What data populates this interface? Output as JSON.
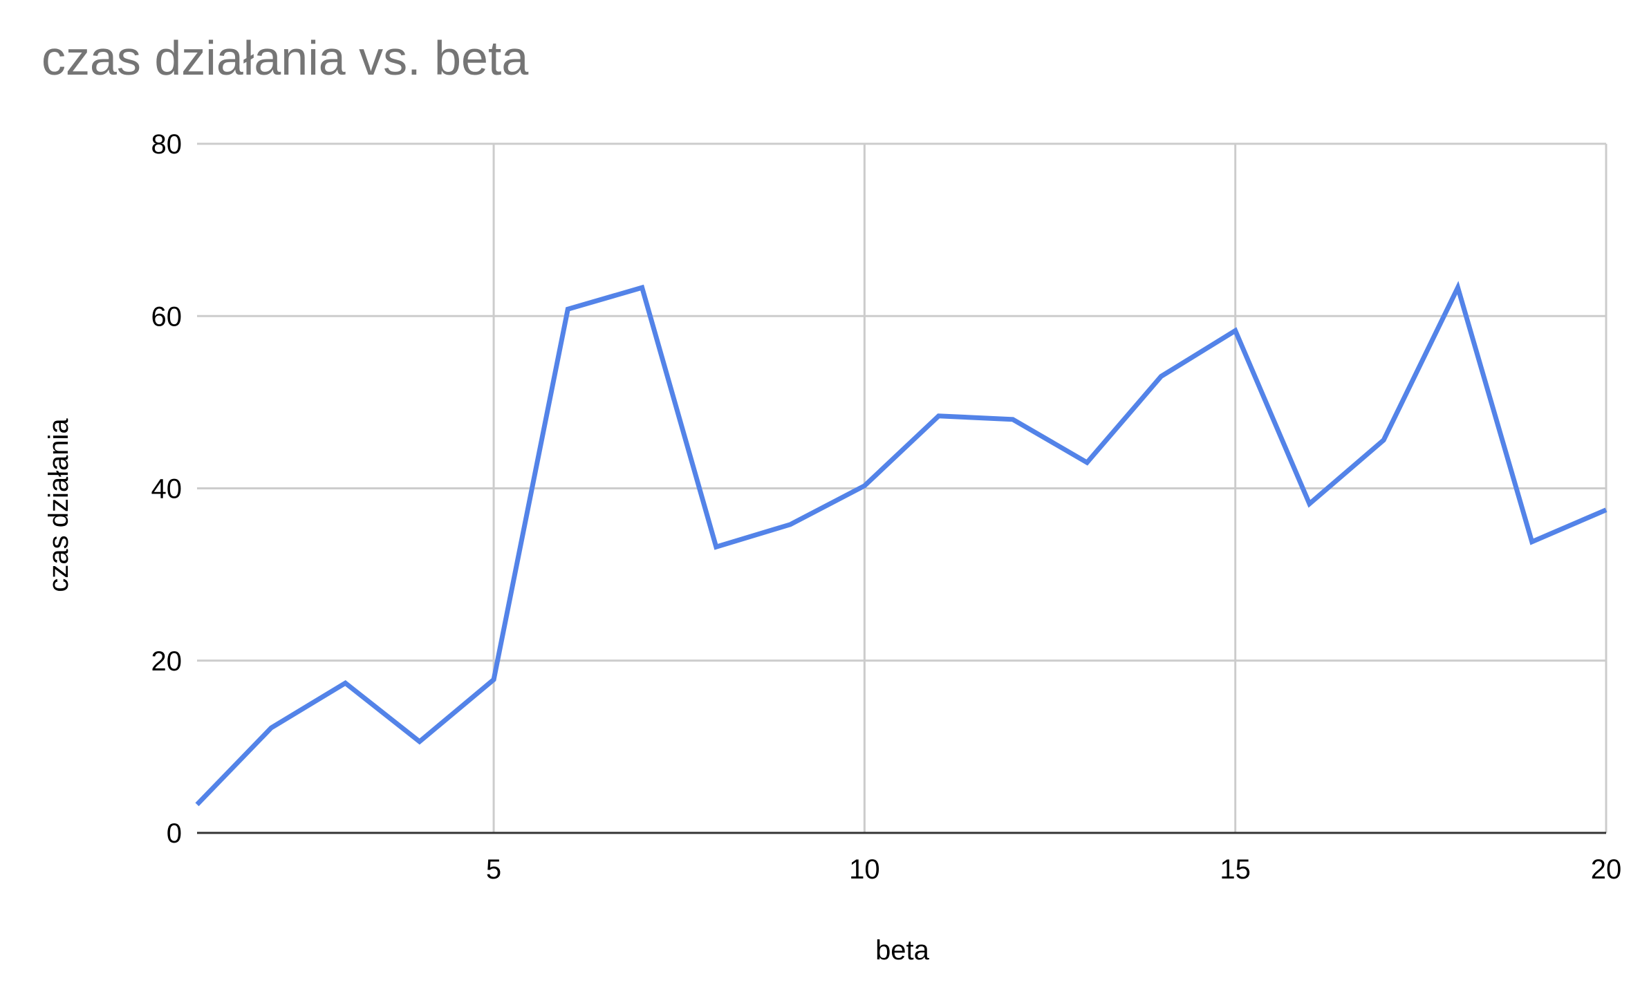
{
  "chart_data": {
    "type": "line",
    "title": "czas działania vs. beta",
    "xlabel": "beta",
    "ylabel": "czas działania",
    "xlim": [
      1,
      20
    ],
    "ylim": [
      0,
      80
    ],
    "x_ticks": [
      5,
      10,
      15,
      20
    ],
    "y_ticks": [
      0,
      20,
      40,
      60,
      80
    ],
    "grid": true,
    "legend": "none",
    "series": [
      {
        "color": "#5383E8",
        "x": [
          1,
          2,
          3,
          4,
          5,
          6,
          7,
          8,
          9,
          10,
          11,
          12,
          13,
          14,
          15,
          16,
          17,
          18,
          19,
          20
        ],
        "y": [
          3.3,
          12.2,
          17.4,
          10.6,
          17.8,
          60.8,
          63.3,
          33.2,
          35.8,
          40.3,
          48.4,
          48.0,
          43.0,
          53.0,
          58.3,
          38.2,
          45.6,
          63.3,
          33.8,
          37.5
        ]
      }
    ]
  }
}
